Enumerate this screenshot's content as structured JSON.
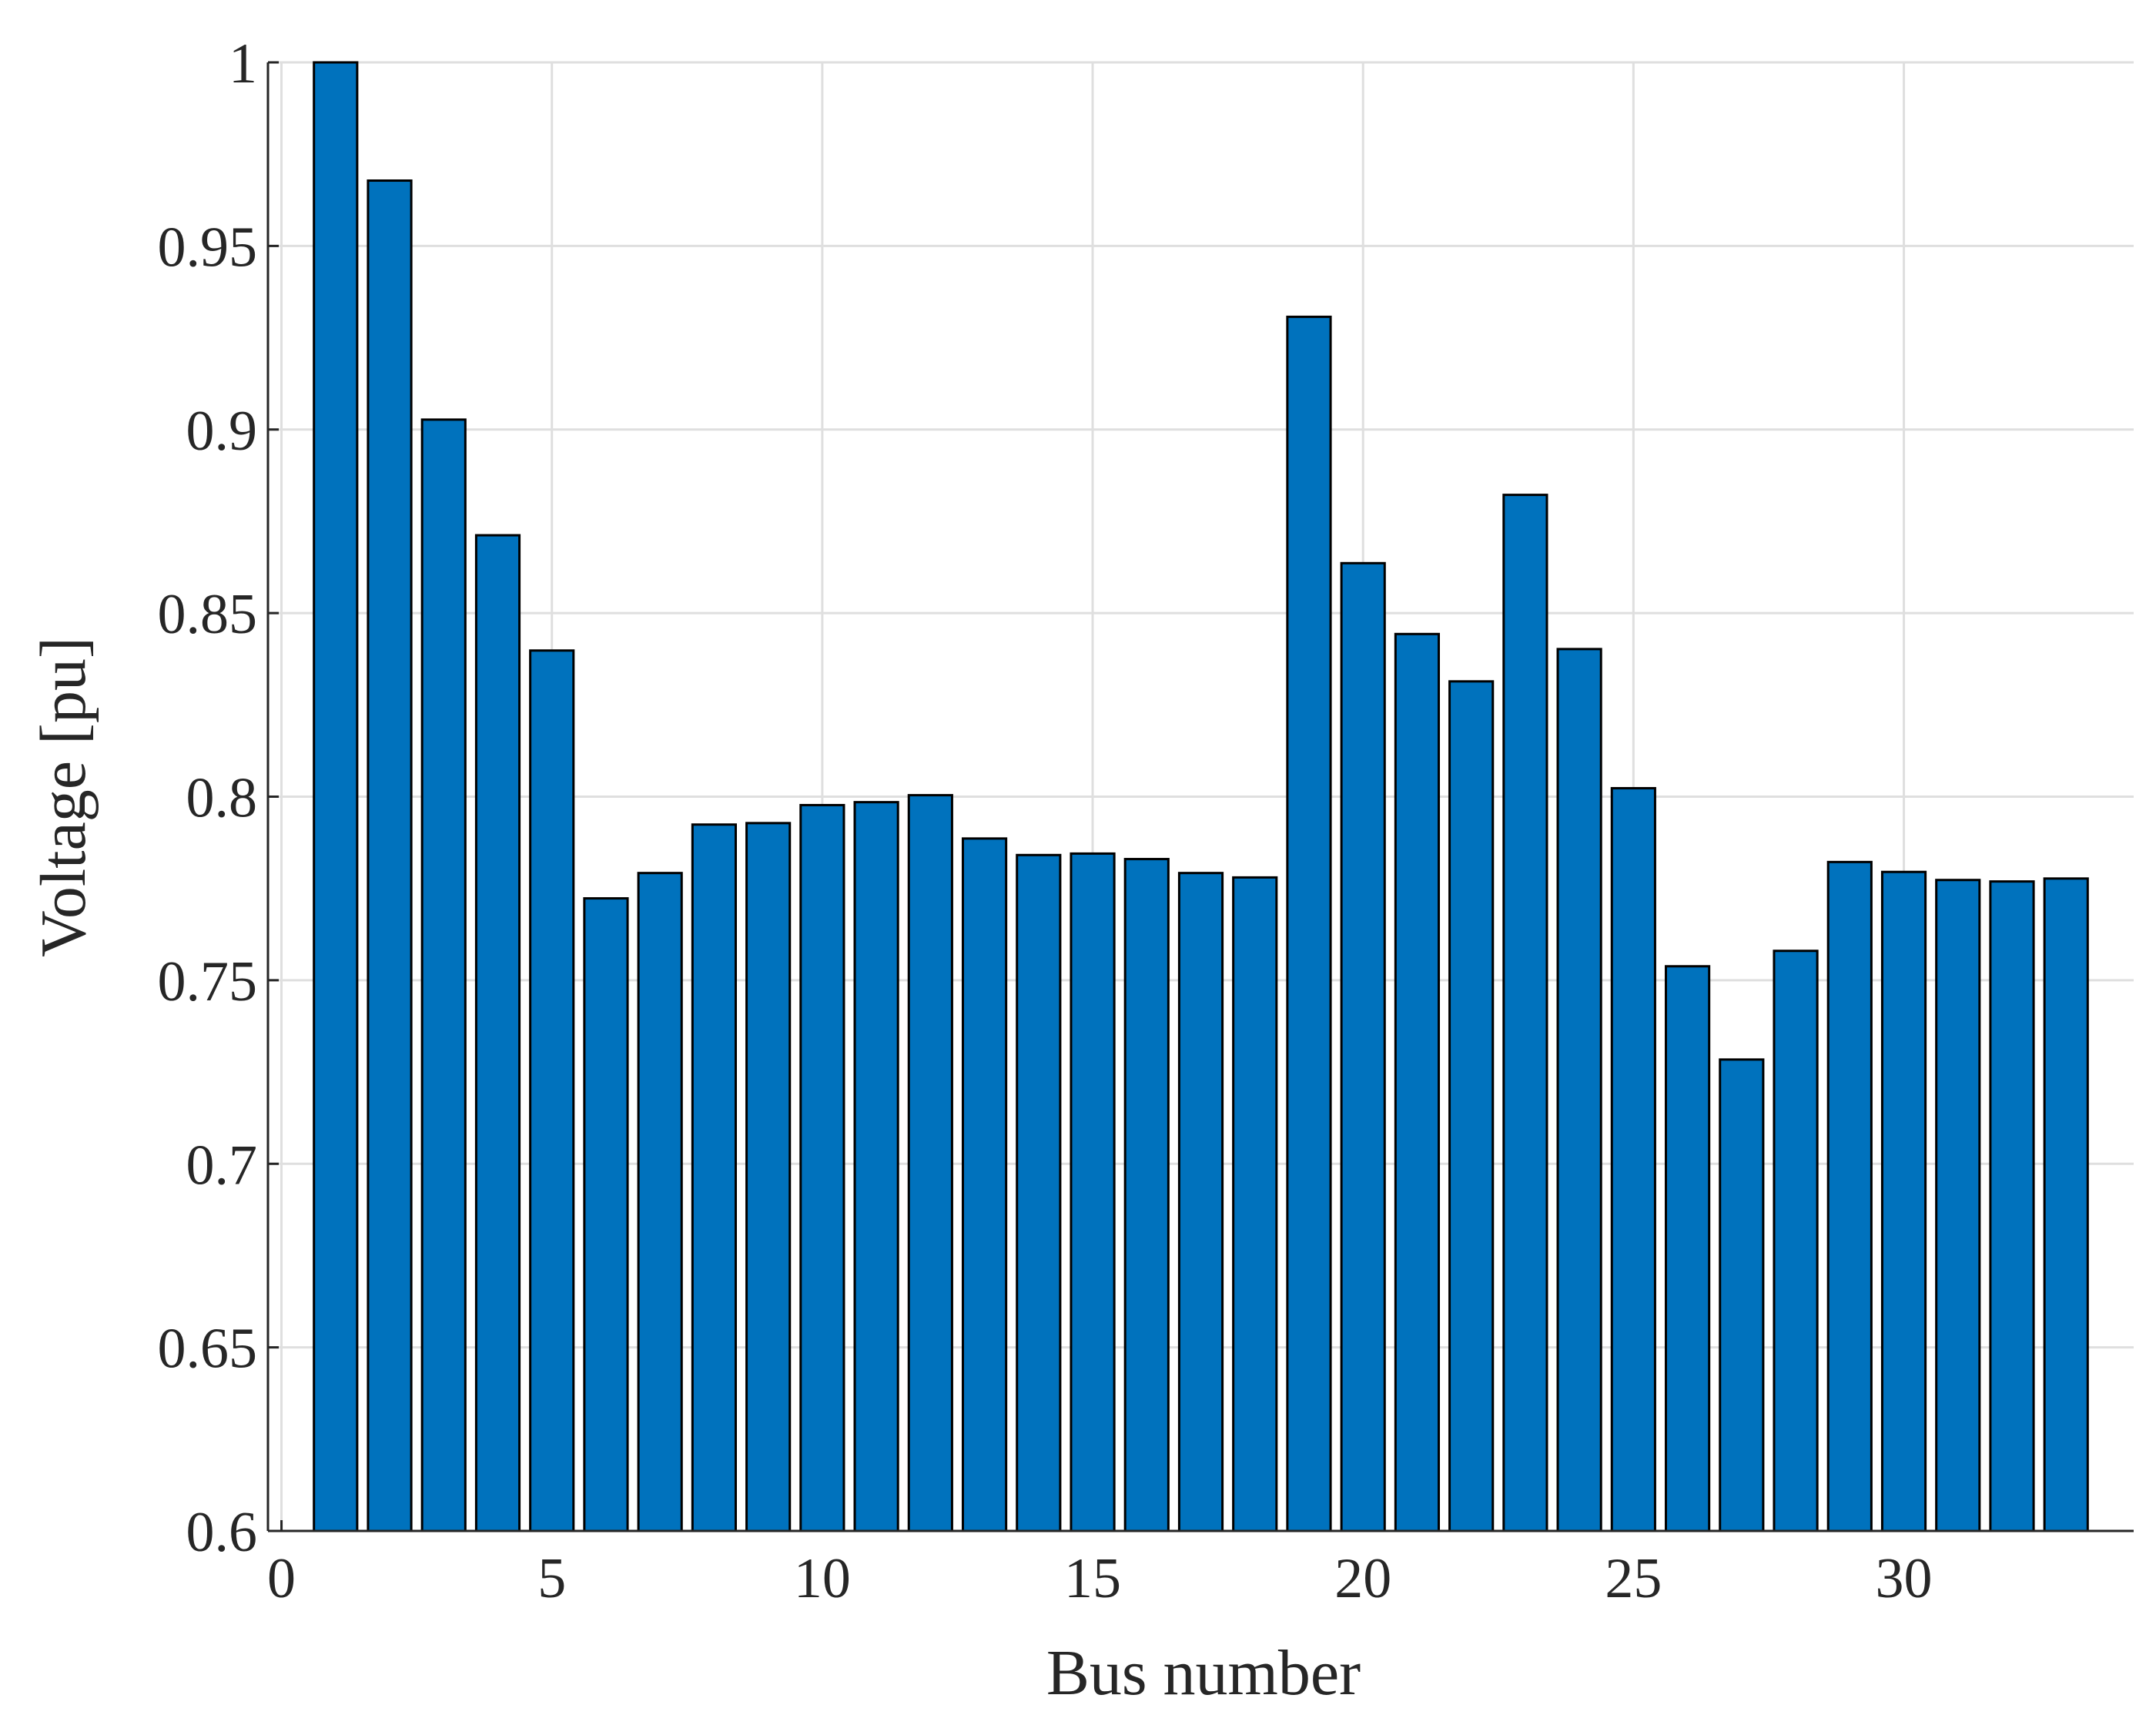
{
  "chart_data": {
    "type": "bar",
    "x_label": "Bus number",
    "y_label": "Voltage [pu]",
    "x": [
      1,
      2,
      3,
      4,
      5,
      6,
      7,
      8,
      9,
      10,
      11,
      12,
      13,
      14,
      15,
      16,
      17,
      18,
      19,
      20,
      21,
      22,
      23,
      24,
      25,
      26,
      27,
      28,
      29,
      30,
      31,
      32,
      33
    ],
    "values": [
      1.0,
      0.9678,
      0.9027,
      0.8712,
      0.8398,
      0.7723,
      0.7792,
      0.7924,
      0.7928,
      0.7977,
      0.7985,
      0.8004,
      0.7886,
      0.7841,
      0.7845,
      0.783,
      0.7792,
      0.778,
      0.9307,
      0.8636,
      0.8443,
      0.8314,
      0.8822,
      0.8402,
      0.8023,
      0.7538,
      0.7284,
      0.758,
      0.7822,
      0.7795,
      0.7773,
      0.7769,
      0.7777
    ],
    "color": "#0072bd",
    "xlim": [
      -0.25,
      34.25
    ],
    "xticks": [
      0,
      5,
      10,
      15,
      20,
      25,
      30
    ],
    "ylim": [
      0.6,
      1
    ],
    "yticks": [
      0.6,
      0.65,
      0.7,
      0.75,
      0.8,
      0.85,
      0.9,
      0.95,
      1
    ],
    "grid": true
  }
}
